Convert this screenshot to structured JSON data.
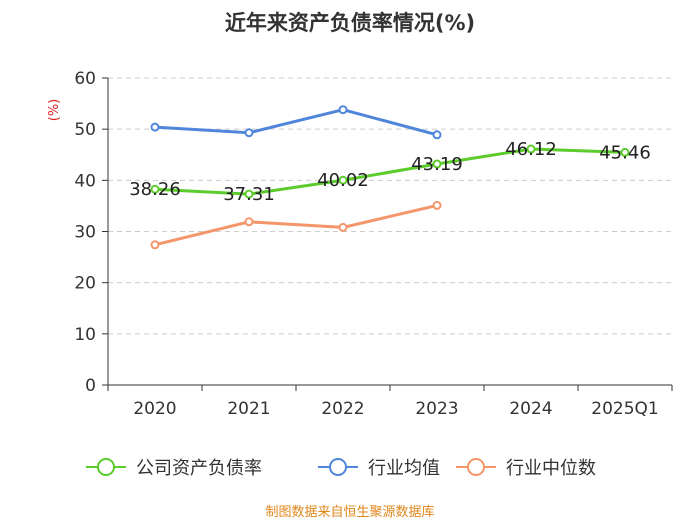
{
  "chart_data": {
    "type": "line",
    "title": "近年来资产负债率情况(%)",
    "unit_label": "(%)",
    "categories": [
      "2020",
      "2021",
      "2022",
      "2023",
      "2024",
      "2025Q1"
    ],
    "ylim": [
      0,
      60
    ],
    "yticks": [
      0,
      10,
      20,
      30,
      40,
      50,
      60
    ],
    "grid": true,
    "legend_position": "bottom",
    "series": [
      {
        "name": "公司资产负债率",
        "color": "#5ccc2c",
        "values": [
          38.26,
          37.31,
          40.02,
          43.19,
          46.12,
          45.46
        ],
        "labels": [
          "38.26",
          "37.31",
          "40.02",
          "43.19",
          "46.12",
          "45.46"
        ]
      },
      {
        "name": "行业均值",
        "color": "#4f86dc",
        "values": [
          50.4,
          49.3,
          53.8,
          48.9,
          null,
          null
        ]
      },
      {
        "name": "行业中位数",
        "color": "#f4956a",
        "values": [
          27.4,
          31.9,
          30.8,
          35.1,
          null,
          null
        ]
      }
    ]
  },
  "source": "制图数据来自恒生聚源数据库"
}
